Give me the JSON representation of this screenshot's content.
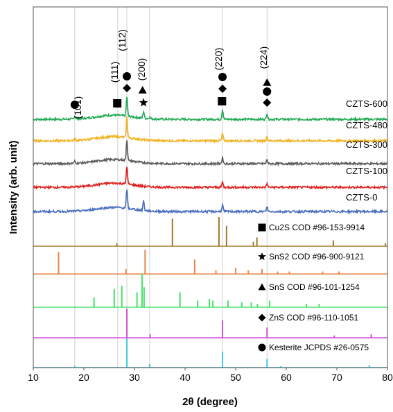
{
  "chart_data": {
    "type": "line",
    "title": "",
    "xlabel": "2θ (degree)",
    "ylabel": "Intensity (arb. unit)",
    "xlim": [
      10,
      80
    ],
    "xticks": [
      10,
      20,
      30,
      40,
      50,
      60,
      70,
      80
    ],
    "grid": "vertical lines at kesterite reflections",
    "grid_x": [
      18.2,
      26.7,
      28.5,
      33.0,
      47.4,
      56.2
    ],
    "series": [
      {
        "name": "CZTS-600",
        "color": "#22aa55",
        "peaks": [
          [
            18.2,
            0.15
          ],
          [
            28.5,
            1.0
          ],
          [
            31.8,
            0.35
          ],
          [
            33.0,
            0.1
          ],
          [
            47.4,
            0.5
          ],
          [
            56.2,
            0.3
          ]
        ]
      },
      {
        "name": "CZTS-480",
        "color": "#f0b323",
        "peaks": [
          [
            18.2,
            0.1
          ],
          [
            28.5,
            1.0
          ],
          [
            47.4,
            0.35
          ],
          [
            56.2,
            0.2
          ]
        ]
      },
      {
        "name": "CZTS-300",
        "color": "#5a5a5a",
        "peaks": [
          [
            18.2,
            0.1
          ],
          [
            28.5,
            1.0
          ],
          [
            47.4,
            0.3
          ],
          [
            56.2,
            0.2
          ]
        ]
      },
      {
        "name": "CZTS-100",
        "color": "#e0201e",
        "peaks": [
          [
            28.5,
            1.0
          ],
          [
            47.4,
            0.3
          ],
          [
            56.2,
            0.2
          ]
        ]
      },
      {
        "name": "CZTS-0",
        "color": "#4a6fc0",
        "peaks": [
          [
            28.5,
            1.0
          ],
          [
            31.8,
            0.5
          ],
          [
            47.4,
            0.35
          ],
          [
            56.2,
            0.25
          ]
        ]
      }
    ],
    "references": [
      {
        "name": "Cu2S COD #96-153-9914",
        "marker": "square",
        "color": "#a07a26",
        "lines": [
          [
            26.5,
            0.1
          ],
          [
            37.5,
            0.95
          ],
          [
            46.7,
            1.0
          ],
          [
            48.2,
            0.7
          ],
          [
            53.5,
            0.15
          ],
          [
            54.2,
            0.3
          ],
          [
            69.3,
            0.2
          ],
          [
            79.6,
            0.1
          ]
        ]
      },
      {
        "name": "SnS2 COD #96-900-9121",
        "marker": "star",
        "color": "#e8864a",
        "lines": [
          [
            15.0,
            0.9
          ],
          [
            28.3,
            0.2
          ],
          [
            32.1,
            1.0
          ],
          [
            41.9,
            0.6
          ],
          [
            46.1,
            0.15
          ],
          [
            50.0,
            0.25
          ],
          [
            52.5,
            0.15
          ],
          [
            55.2,
            0.2
          ],
          [
            58.3,
            0.1
          ],
          [
            60.6,
            0.1
          ],
          [
            67.2,
            0.1
          ],
          [
            70.4,
            0.1
          ]
        ]
      },
      {
        "name": "SnS COD #96-101-1254",
        "marker": "triangle",
        "color": "#44e266",
        "lines": [
          [
            22.0,
            0.3
          ],
          [
            26.0,
            0.55
          ],
          [
            27.5,
            0.65
          ],
          [
            30.5,
            0.45
          ],
          [
            31.5,
            1.0
          ],
          [
            31.9,
            0.6
          ],
          [
            39.0,
            0.45
          ],
          [
            42.5,
            0.2
          ],
          [
            44.8,
            0.25
          ],
          [
            45.5,
            0.2
          ],
          [
            48.5,
            0.2
          ],
          [
            51.2,
            0.15
          ],
          [
            53.1,
            0.15
          ],
          [
            54.3,
            0.1
          ],
          [
            56.7,
            0.2
          ],
          [
            64.0,
            0.1
          ],
          [
            66.5,
            0.1
          ]
        ]
      },
      {
        "name": "ZnS COD #96-110-1051",
        "marker": "diamond",
        "color": "#d24fd6",
        "lines": [
          [
            28.5,
            1.0
          ],
          [
            33.1,
            0.12
          ],
          [
            47.4,
            0.6
          ],
          [
            56.2,
            0.35
          ],
          [
            69.5,
            0.08
          ],
          [
            76.8,
            0.12
          ]
        ]
      },
      {
        "name": "Kesterite JCPDS #26-0575",
        "marker": "circle",
        "color": "#3ec8e8",
        "lines": [
          [
            18.2,
            0.06
          ],
          [
            28.5,
            1.0
          ],
          [
            33.0,
            0.12
          ],
          [
            47.4,
            0.55
          ],
          [
            56.2,
            0.3
          ],
          [
            58.9,
            0.05
          ],
          [
            76.4,
            0.08
          ]
        ]
      }
    ],
    "miller_indices": [
      {
        "label": "(101)",
        "x": 18.2
      },
      {
        "label": "(111)",
        "x": 26.7
      },
      {
        "label": "(112)",
        "x": 28.5
      },
      {
        "label": "(200)",
        "x": 32.2
      },
      {
        "label": "(220)",
        "x": 47.4
      },
      {
        "label": "(224)",
        "x": 56.2
      }
    ],
    "phase_markers": [
      {
        "marker": "circle",
        "x": 18.2
      },
      {
        "marker": "square",
        "x": 26.6
      },
      {
        "marker": "circle",
        "x": 28.5
      },
      {
        "marker": "diamond",
        "x": 28.5
      },
      {
        "marker": "triangle",
        "x": 31.6
      },
      {
        "marker": "star",
        "x": 31.8
      },
      {
        "marker": "circle",
        "x": 47.4
      },
      {
        "marker": "diamond",
        "x": 47.4
      },
      {
        "marker": "square",
        "x": 47.3
      },
      {
        "marker": "triangle",
        "x": 56.2
      },
      {
        "marker": "circle",
        "x": 56.2
      },
      {
        "marker": "diamond",
        "x": 56.2
      }
    ]
  }
}
